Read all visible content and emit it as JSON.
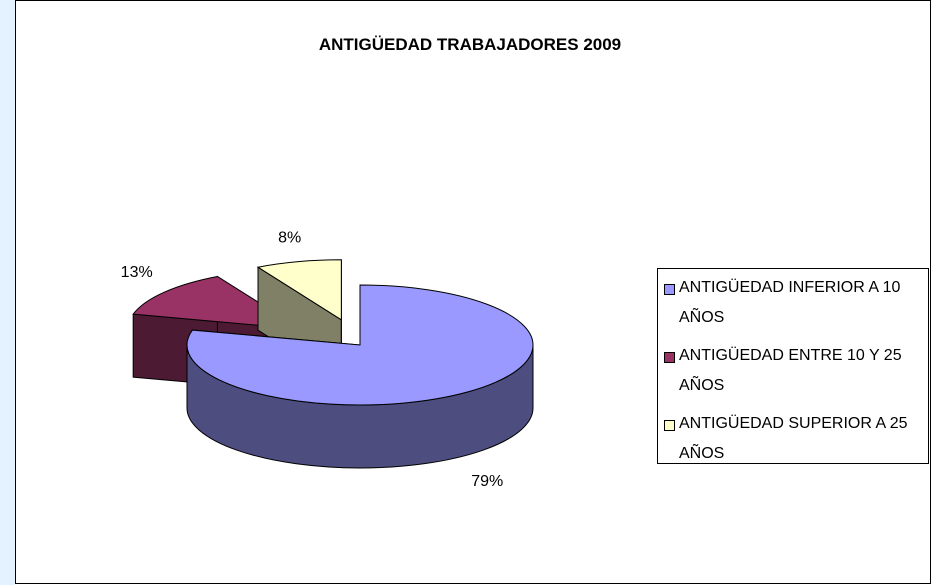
{
  "chart_data": {
    "type": "pie",
    "title": "ANTIGÜEDAD TRABAJADORES 2009",
    "categories": [
      "ANTIGÜEDAD INFERIOR A 10 AÑOS",
      "ANTIGÜEDAD ENTRE 10 Y 25 AÑOS",
      "ANTIGÜEDAD SUPERIOR A 25 AÑOS"
    ],
    "values": [
      79,
      13,
      8
    ],
    "value_labels": [
      "79%",
      "13%",
      "8%"
    ],
    "colors": [
      "#9999ff",
      "#993366",
      "#ffffcc"
    ],
    "legend": "right"
  }
}
